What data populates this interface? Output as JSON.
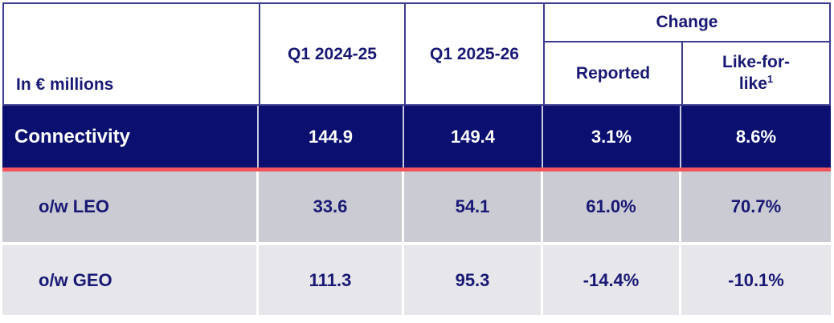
{
  "chart_data": {
    "type": "table",
    "unit_label": "In € millions",
    "columns": {
      "q1_prev": "Q1 2024-25",
      "q1_curr": "Q1 2025-26",
      "change_group": "Change",
      "reported": "Reported",
      "lfl": "Like-for-like",
      "lfl_superscript": "1"
    },
    "rows": [
      {
        "label": "Connectivity",
        "q1_prev": "144.9",
        "q1_curr": "149.4",
        "change_reported": "3.1%",
        "change_lfl": "8.6%",
        "emphasis": "primary"
      },
      {
        "label": "o/w LEO",
        "q1_prev": "33.6",
        "q1_curr": "54.1",
        "change_reported": "61.0%",
        "change_lfl": "70.7%",
        "emphasis": "sub"
      },
      {
        "label": "o/w GEO",
        "q1_prev": "111.3",
        "q1_curr": "95.3",
        "change_reported": "-14.4%",
        "change_lfl": "-10.1%",
        "emphasis": "sub"
      }
    ]
  },
  "colors": {
    "header_border": "#3c3c8e",
    "navy_text": "#191975",
    "primary_row_bg": "#0a0f70",
    "primary_row_text": "#ffffff",
    "red_divider": "#f4555d",
    "leo_row_bg": "#cbcbd4",
    "geo_row_bg": "#e6e6eb"
  }
}
